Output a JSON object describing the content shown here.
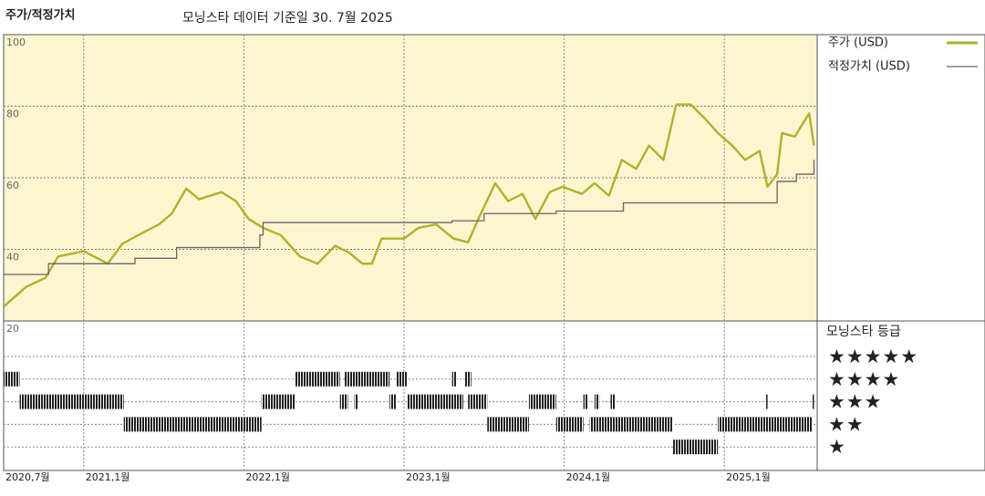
{
  "chart_data": {
    "type": "line",
    "title": "주가/적정가치",
    "subtitle": "모닝스타 데이터 기준일 30. 7월 2025",
    "xlim": [
      2020.5,
      2025.58
    ],
    "xticks": [
      {
        "value": 2020.5,
        "label": "2020,7월"
      },
      {
        "value": 2021,
        "label": "2021,1월"
      },
      {
        "value": 2022,
        "label": "2022,1월"
      },
      {
        "value": 2023,
        "label": "2023,1월"
      },
      {
        "value": 2024,
        "label": "2024,1월"
      },
      {
        "value": 2025,
        "label": "2025,1월"
      }
    ],
    "ylim": [
      20,
      100
    ],
    "yticks": [
      100,
      80,
      60,
      40,
      20
    ],
    "grid": true,
    "series": [
      {
        "name": "주가 (USD)",
        "color": "#a9b526",
        "step": false,
        "x": [
          2020.5,
          2020.64,
          2020.76,
          2020.84,
          2021.0,
          2021.15,
          2021.24,
          2021.32,
          2021.47,
          2021.55,
          2021.64,
          2021.72,
          2021.86,
          2021.95,
          2022.03,
          2022.12,
          2022.23,
          2022.35,
          2022.46,
          2022.57,
          2022.66,
          2022.74,
          2022.8,
          2022.86,
          2023.0,
          2023.09,
          2023.2,
          2023.31,
          2023.4,
          2023.48,
          2023.57,
          2023.65,
          2023.74,
          2023.82,
          2023.91,
          2023.99,
          2024.11,
          2024.19,
          2024.28,
          2024.36,
          2024.45,
          2024.53,
          2024.62,
          2024.7,
          2024.79,
          2024.88,
          2024.96,
          2025.05,
          2025.13,
          2025.22,
          2025.27,
          2025.33,
          2025.36,
          2025.44,
          2025.53,
          2025.56
        ],
        "values": [
          24,
          29.5,
          32,
          38,
          39.5,
          36,
          41.5,
          43.5,
          47,
          50,
          57,
          54,
          56,
          53.5,
          48.5,
          46,
          44,
          38,
          36,
          41,
          39,
          36,
          36,
          43,
          43,
          46,
          47,
          43,
          42,
          50,
          58.5,
          53.5,
          55.5,
          48.5,
          56,
          57.5,
          55.5,
          58.5,
          55,
          65,
          62.5,
          69,
          65,
          80.5,
          80.5,
          76.5,
          72.5,
          69,
          65,
          67.5,
          57.5,
          61,
          72.5,
          71.5,
          78,
          69
        ]
      },
      {
        "name": "적정가치 (USD)",
        "color": "#666666",
        "step": true,
        "x": [
          2020.5,
          2020.78,
          2021.32,
          2021.58,
          2022.1,
          2022.12,
          2023.3,
          2023.5,
          2023.95,
          2024.37,
          2025.33,
          2025.45,
          2025.56
        ],
        "values": [
          33,
          36,
          37.5,
          40.5,
          44,
          47.5,
          48,
          50,
          50.7,
          53,
          59,
          61,
          65
        ]
      }
    ],
    "rating_title": "모닝스타 등급",
    "rating_labels": [
      "★★★★★",
      "★★★★",
      "★★★",
      "★★",
      "★"
    ],
    "ratings": [
      {
        "rating": 4,
        "start": 2020.5,
        "end": 2020.6
      },
      {
        "rating": 4,
        "start": 2022.32,
        "end": 2022.6
      },
      {
        "rating": 4,
        "start": 2022.63,
        "end": 2022.91
      },
      {
        "rating": 4,
        "start": 2022.95,
        "end": 2023.02
      },
      {
        "rating": 4,
        "start": 2023.3,
        "end": 2023.33
      },
      {
        "rating": 4,
        "start": 2023.38,
        "end": 2023.42
      },
      {
        "rating": 3,
        "start": 2020.6,
        "end": 2021.25
      },
      {
        "rating": 3,
        "start": 2022.11,
        "end": 2022.32
      },
      {
        "rating": 3,
        "start": 2022.6,
        "end": 2022.65
      },
      {
        "rating": 3,
        "start": 2022.69,
        "end": 2022.71
      },
      {
        "rating": 3,
        "start": 2022.91,
        "end": 2022.95
      },
      {
        "rating": 3,
        "start": 2023.02,
        "end": 2023.37
      },
      {
        "rating": 3,
        "start": 2023.4,
        "end": 2023.52
      },
      {
        "rating": 3,
        "start": 2023.78,
        "end": 2023.95
      },
      {
        "rating": 3,
        "start": 2024.12,
        "end": 2024.15
      },
      {
        "rating": 3,
        "start": 2024.19,
        "end": 2024.22
      },
      {
        "rating": 3,
        "start": 2024.29,
        "end": 2024.32
      },
      {
        "rating": 3,
        "start": 2025.26,
        "end": 2025.27
      },
      {
        "rating": 3,
        "start": 2025.55,
        "end": 2025.56
      },
      {
        "rating": 2,
        "start": 2021.25,
        "end": 2022.11
      },
      {
        "rating": 2,
        "start": 2023.52,
        "end": 2023.78
      },
      {
        "rating": 2,
        "start": 2023.95,
        "end": 2024.12
      },
      {
        "rating": 2,
        "start": 2024.16,
        "end": 2024.68
      },
      {
        "rating": 2,
        "start": 2024.96,
        "end": 2025.55
      },
      {
        "rating": 1,
        "start": 2024.68,
        "end": 2024.96
      }
    ]
  }
}
